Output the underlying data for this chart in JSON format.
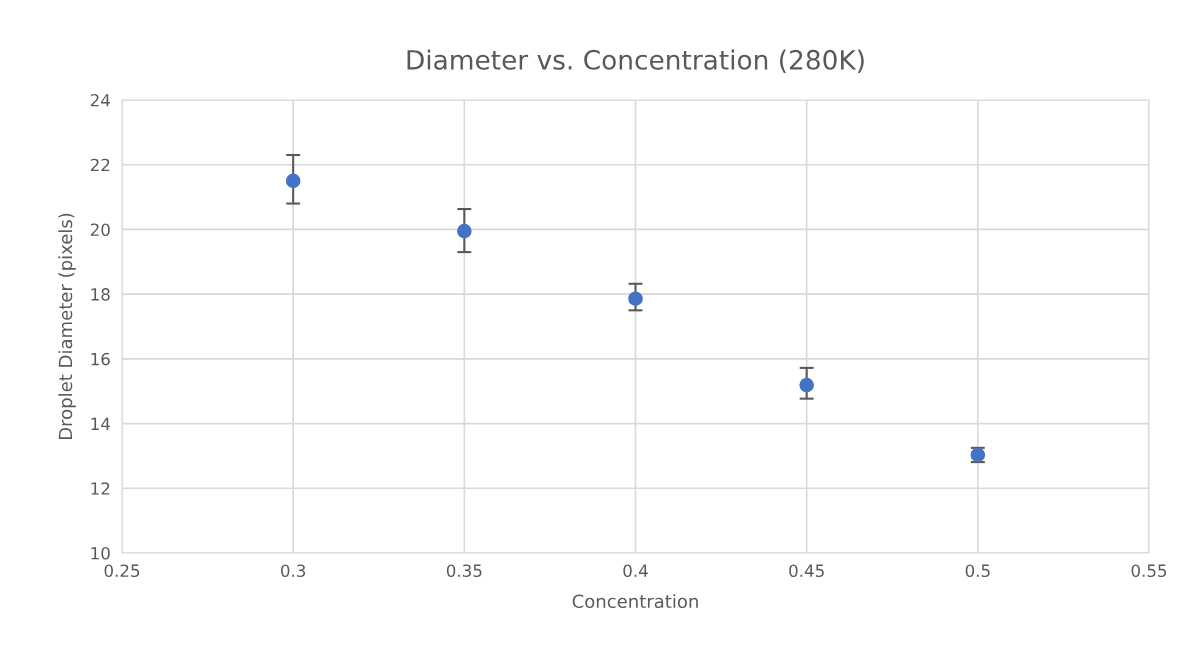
{
  "chart_data": {
    "type": "scatter",
    "title": "Diameter vs. Concentration (280K)",
    "xlabel": "Concentration",
    "ylabel": "Droplet Diameter (pixels)",
    "x": [
      0.3,
      0.35,
      0.4,
      0.45,
      0.5
    ],
    "values": [
      21.5,
      19.95,
      17.86,
      15.19,
      13.03
    ],
    "errors": [
      [
        20.8,
        22.3
      ],
      [
        19.3,
        20.63
      ],
      [
        17.5,
        18.32
      ],
      [
        14.77,
        15.72
      ],
      0.22
    ],
    "color": "#4472c4",
    "marker": "circle",
    "xlim": [
      0.25,
      0.55
    ],
    "xticks": [
      0.25,
      0.3,
      0.35,
      0.4,
      0.45,
      0.5,
      0.55
    ],
    "ylim": [
      10,
      24
    ],
    "yticks": [
      10,
      12,
      14,
      16,
      18,
      20,
      22,
      24
    ],
    "grid": true
  }
}
